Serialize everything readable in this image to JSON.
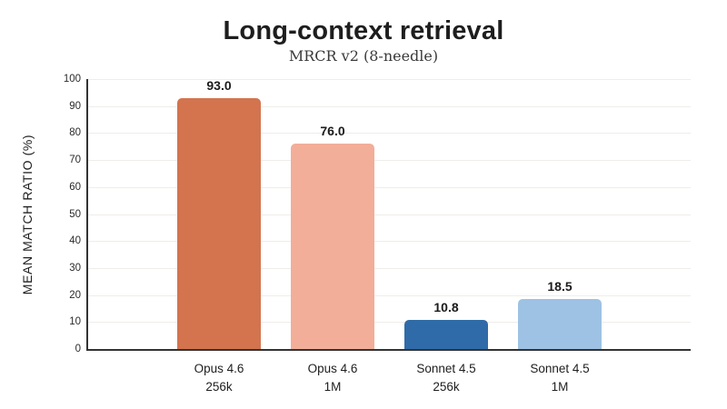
{
  "chart_data": {
    "type": "bar",
    "title": "Long-context retrieval",
    "subtitle": "MRCR v2 (8-needle)",
    "ylabel": "MEAN MATCH RATIO (%)",
    "xlabel": "",
    "ylim": [
      0,
      100
    ],
    "yticks": [
      0,
      10,
      20,
      30,
      40,
      50,
      60,
      70,
      80,
      90,
      100
    ],
    "grid": true,
    "legend": "none",
    "categories": [
      {
        "line1": "Opus 4.6",
        "line2": "256k"
      },
      {
        "line1": "Opus 4.6",
        "line2": "1M"
      },
      {
        "line1": "Sonnet 4.5",
        "line2": "256k"
      },
      {
        "line1": "Sonnet 4.5",
        "line2": "1M"
      }
    ],
    "values": [
      93.0,
      76.0,
      10.8,
      18.5
    ],
    "value_labels": [
      "93.0",
      "76.0",
      "10.8",
      "18.5"
    ],
    "bar_colors": [
      "#D3744F",
      "#F2AE99",
      "#2F6BA8",
      "#9DC2E4"
    ],
    "colors": {
      "axis": "#333333",
      "gridline": "#efedea",
      "text": "#1e1e1e",
      "background": "#ffffff"
    }
  }
}
